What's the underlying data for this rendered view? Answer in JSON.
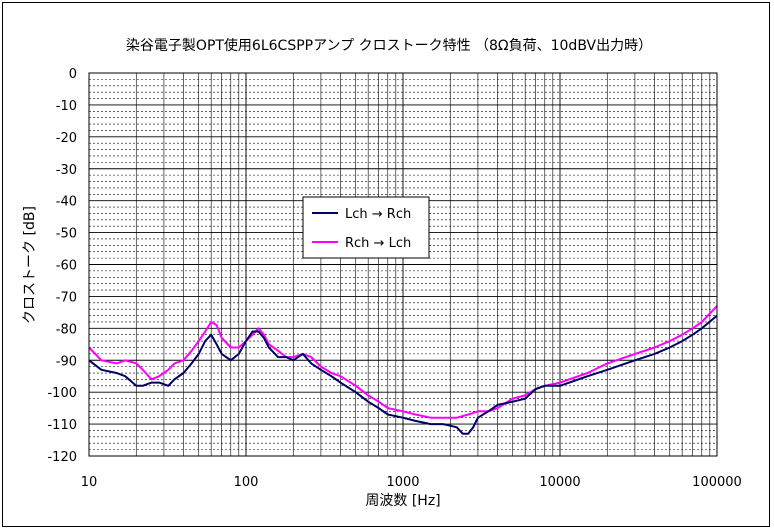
{
  "chart_data": {
    "type": "line",
    "title": "染谷電子製OPT使用6L6CSPPアンプ クロストーク特性 （8Ω負荷、10dBV出力時）",
    "xlabel": "周波数 [Hz]",
    "ylabel": "クロストーク [dB]",
    "xscale": "log",
    "xlim": [
      10,
      100000
    ],
    "ylim": [
      -120,
      0
    ],
    "x_ticks": [
      "10",
      "100",
      "1000",
      "10000",
      "100000"
    ],
    "y_ticks": [
      "0",
      "-10",
      "-20",
      "-30",
      "-40",
      "-50",
      "-60",
      "-70",
      "-80",
      "-90",
      "-100",
      "-110",
      "-120"
    ],
    "grid": true,
    "legend_position": "center-left",
    "series": [
      {
        "name": "Lch → Rch",
        "color": "#000066",
        "x": [
          10,
          12,
          15,
          17,
          20,
          22,
          25,
          28,
          32,
          35,
          40,
          45,
          50,
          55,
          60,
          65,
          70,
          80,
          90,
          100,
          110,
          120,
          130,
          140,
          160,
          180,
          200,
          230,
          260,
          300,
          350,
          400,
          500,
          600,
          700,
          800,
          1000,
          1200,
          1500,
          1800,
          2000,
          2200,
          2400,
          2600,
          2800,
          3000,
          3500,
          4000,
          5000,
          6000,
          7000,
          8000,
          10000,
          15000,
          20000,
          30000,
          40000,
          50000,
          60000,
          70000,
          80000,
          100000
        ],
        "values": [
          -90,
          -93,
          -94,
          -95,
          -98,
          -98,
          -97,
          -97,
          -98,
          -96,
          -94,
          -91,
          -88,
          -84,
          -82,
          -85,
          -88,
          -90,
          -88,
          -84,
          -81,
          -81,
          -83,
          -86,
          -89,
          -89,
          -90,
          -88,
          -91,
          -93,
          -95,
          -97,
          -100,
          -103,
          -105,
          -107,
          -108,
          -109,
          -110,
          -110,
          -110.5,
          -111,
          -113,
          -113,
          -111,
          -108,
          -106,
          -104,
          -103,
          -102,
          -99,
          -98,
          -98,
          -95,
          -93,
          -90,
          -88,
          -86,
          -84,
          -82,
          -80,
          -76
        ]
      },
      {
        "name": "Rch → Lch",
        "color": "#ff00ff",
        "x": [
          10,
          12,
          15,
          17,
          20,
          22,
          25,
          28,
          32,
          35,
          40,
          45,
          50,
          55,
          60,
          65,
          70,
          80,
          90,
          100,
          110,
          120,
          130,
          140,
          160,
          180,
          200,
          230,
          260,
          300,
          350,
          400,
          500,
          600,
          700,
          800,
          1000,
          1200,
          1500,
          1800,
          2000,
          2200,
          2400,
          2600,
          2800,
          3000,
          3500,
          4000,
          5000,
          6000,
          7000,
          8000,
          10000,
          15000,
          20000,
          30000,
          40000,
          50000,
          60000,
          70000,
          80000,
          100000
        ],
        "values": [
          -86,
          -90,
          -91,
          -90,
          -91,
          -93,
          -96,
          -95,
          -93,
          -91,
          -90,
          -87,
          -84,
          -81,
          -78,
          -79,
          -83,
          -86,
          -86,
          -84,
          -82,
          -80,
          -82,
          -85,
          -87,
          -89,
          -89,
          -88,
          -89,
          -92,
          -94,
          -95,
          -98,
          -101,
          -103,
          -105,
          -106,
          -107,
          -108,
          -108,
          -108,
          -108,
          -107.5,
          -107,
          -106.5,
          -106,
          -106,
          -105,
          -102,
          -101,
          -99,
          -98,
          -97,
          -94,
          -91,
          -88,
          -86,
          -84,
          -82,
          -80,
          -78,
          -73
        ]
      }
    ]
  }
}
